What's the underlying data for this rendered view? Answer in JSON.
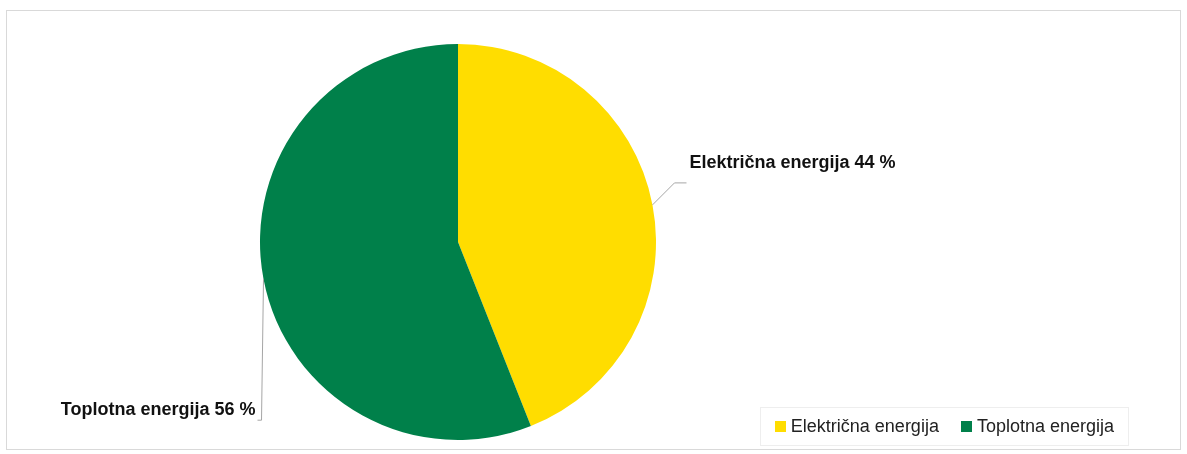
{
  "chart_data": {
    "type": "pie",
    "categories": [
      "Električna energija",
      "Toplotna energija"
    ],
    "values": [
      44,
      56
    ],
    "colors": [
      "#ffdd00",
      "#00804a"
    ],
    "value_labels": [
      "44 %",
      "56 %"
    ],
    "legend": "bottom right"
  }
}
